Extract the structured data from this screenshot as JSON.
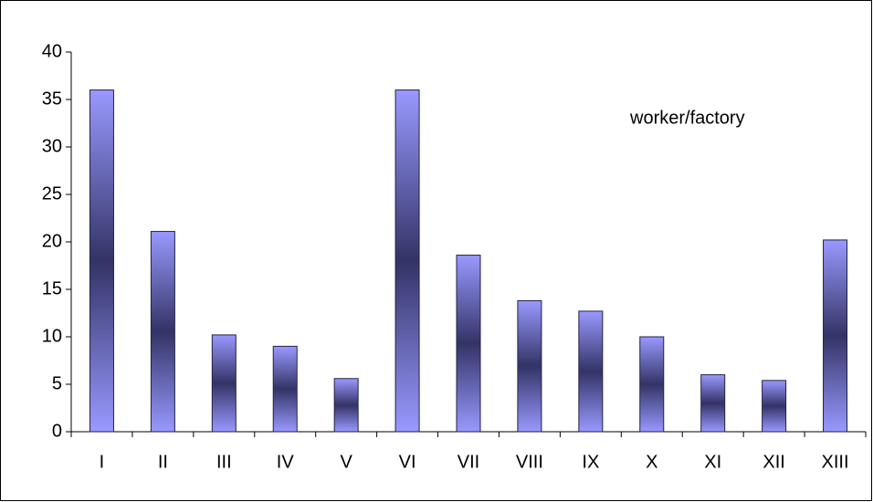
{
  "chart_data": {
    "type": "bar",
    "categories": [
      "I",
      "II",
      "III",
      "IV",
      "V",
      "VI",
      "VII",
      "VIII",
      "IX",
      "X",
      "XI",
      "XII",
      "XIII"
    ],
    "series": [
      {
        "name": "worker/factory",
        "color": "#9999ff",
        "shade": "#333366",
        "values": [
          36,
          21.1,
          10.2,
          9,
          5.6,
          36,
          18.6,
          13.8,
          12.7,
          10,
          6,
          5.4,
          20.2
        ]
      }
    ],
    "ylim": [
      0,
      40
    ],
    "yticks": [
      0,
      5,
      10,
      15,
      20,
      25,
      30,
      35,
      40
    ],
    "grid": false,
    "legend": "top-right"
  }
}
